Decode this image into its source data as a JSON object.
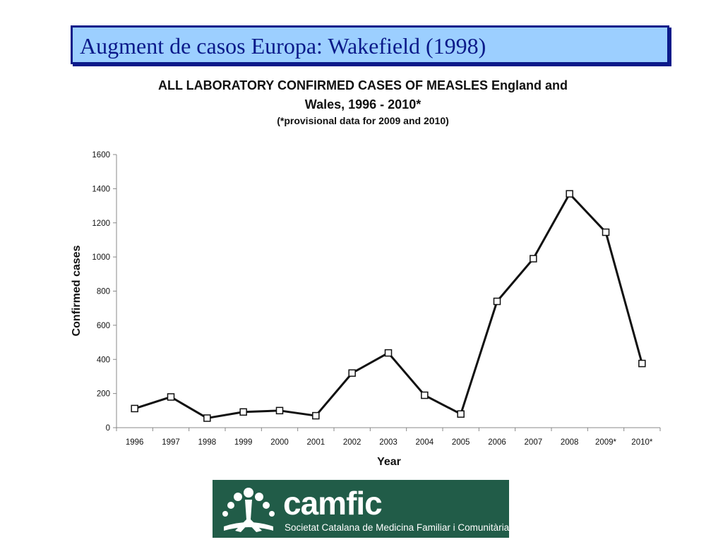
{
  "slide": {
    "title": "Augment de casos Europa: Wakefield (1998)"
  },
  "chart_data": {
    "type": "line",
    "title": "ALL LABORATORY CONFIRMED CASES OF MEASLES England and Wales, 1996 - 2010*",
    "title_line1": "ALL LABORATORY CONFIRMED CASES OF MEASLES England and",
    "title_line2": "Wales, 1996 - 2010*",
    "subtitle": "(*provisional data for 2009 and 2010)",
    "xlabel": "Year",
    "ylabel": "Confirmed cases",
    "categories": [
      "1996",
      "1997",
      "1998",
      "1999",
      "2000",
      "2001",
      "2002",
      "2003",
      "2004",
      "2005",
      "2006",
      "2007",
      "2008",
      "2009*",
      "2010*"
    ],
    "values": [
      112,
      180,
      56,
      92,
      100,
      70,
      320,
      438,
      190,
      80,
      740,
      990,
      1370,
      1145,
      376
    ],
    "ylim": [
      0,
      1600
    ],
    "yticks": [
      0,
      200,
      400,
      600,
      800,
      1000,
      1200,
      1400,
      1600
    ],
    "grid": false,
    "marker": "square",
    "line_color": "#111111"
  },
  "logo": {
    "name": "camfic",
    "subtitle": "Societat Catalana de Medicina Familiar i Comunitària",
    "background": "#215c48"
  }
}
